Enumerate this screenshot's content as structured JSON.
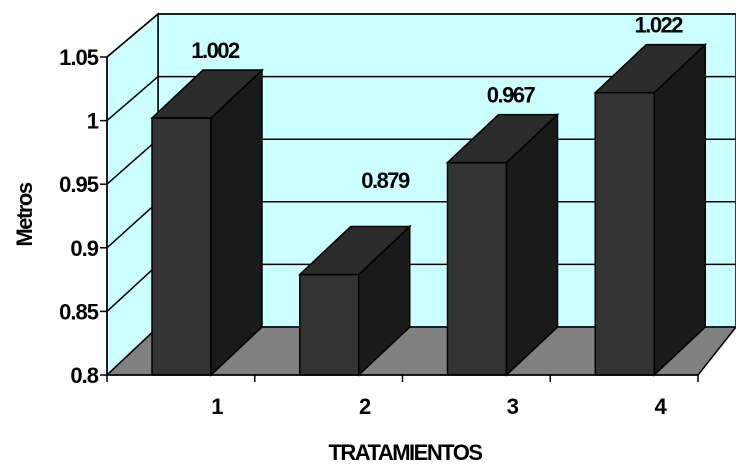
{
  "chart_data": {
    "type": "bar",
    "categories": [
      "1",
      "2",
      "3",
      "4"
    ],
    "values": [
      1.002,
      0.879,
      0.967,
      1.022
    ],
    "data_labels": [
      "1.002",
      "0.879",
      "0.967",
      "1.022"
    ],
    "xlabel": "TRATAMIENTOS",
    "ylabel": "Metros",
    "ylim": [
      0.8,
      1.05
    ],
    "yticks": [
      0.8,
      0.85,
      0.9,
      0.95,
      1,
      1.05
    ],
    "ytick_labels": [
      "0.8",
      "0.85",
      "0.9",
      "0.95",
      "1",
      "1.05"
    ],
    "grid": true,
    "colors": {
      "back_wall": "#ccffff",
      "floor": "#808080",
      "bar_front": "#333333",
      "bar_side": "#1a1a1a",
      "bar_top": "#2b2b2b",
      "grid": "#000000"
    }
  }
}
